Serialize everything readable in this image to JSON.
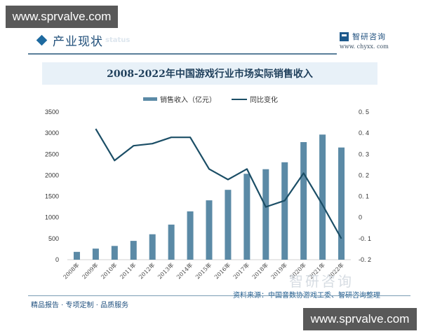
{
  "watermark": {
    "top": "www.sprvalve.com",
    "bottom": "www.sprvalve.com"
  },
  "header": {
    "section_title": "产业现状",
    "section_title_en": "status",
    "brand_name": "智研咨询",
    "brand_url": "www. chyxx. com",
    "brand_icon": "zhiyan-logo-icon"
  },
  "footer": {
    "left": "精品报告 · 专项定制 · 品质服务",
    "source": "资料来源：中国音数协游戏工委、智研咨询整理",
    "watermark_text": "智研咨询"
  },
  "colors": {
    "bar": "#5b8aa6",
    "line": "#1b4e66",
    "title_band": "#e8f1f8",
    "accent": "#1e6aa0"
  },
  "chart_data": {
    "type": "bar+line",
    "title": "2008-2022年中国游戏行业市场实际销售收入",
    "categories": [
      "2008年",
      "2009年",
      "2010年",
      "2011年",
      "2012年",
      "2013年",
      "2014年",
      "2015年",
      "2016年",
      "2017年",
      "2018年",
      "2019年",
      "2020年",
      "2021年",
      "2022年"
    ],
    "series": [
      {
        "name": "销售收入（亿元）",
        "type": "bar",
        "axis": "left",
        "values": [
          185.6,
          262.8,
          326.2,
          446.1,
          602.8,
          831.7,
          1144.8,
          1407.0,
          1655.7,
          2036.1,
          2144.4,
          2308.8,
          2786.9,
          2965.1,
          2658.8
        ]
      },
      {
        "name": "同比变化",
        "type": "line",
        "axis": "right",
        "values": [
          null,
          0.42,
          0.27,
          0.34,
          0.35,
          0.38,
          0.38,
          0.23,
          0.18,
          0.23,
          0.05,
          0.08,
          0.21,
          0.06,
          -0.1
        ]
      }
    ],
    "left_axis": {
      "ylim": [
        0,
        3500
      ],
      "ticks": [
        "0",
        "500",
        "1000",
        "1500",
        "2000",
        "2500",
        "3000",
        "3500"
      ]
    },
    "right_axis": {
      "ylim": [
        -0.2,
        0.5
      ],
      "ticks": [
        "-0. 2",
        "-0. 1",
        "0",
        "0. 1",
        "0. 2",
        "0. 3",
        "0. 4",
        "0. 5"
      ]
    },
    "legend_position": "top",
    "grid": false,
    "xlabel": "",
    "ylabel": ""
  }
}
